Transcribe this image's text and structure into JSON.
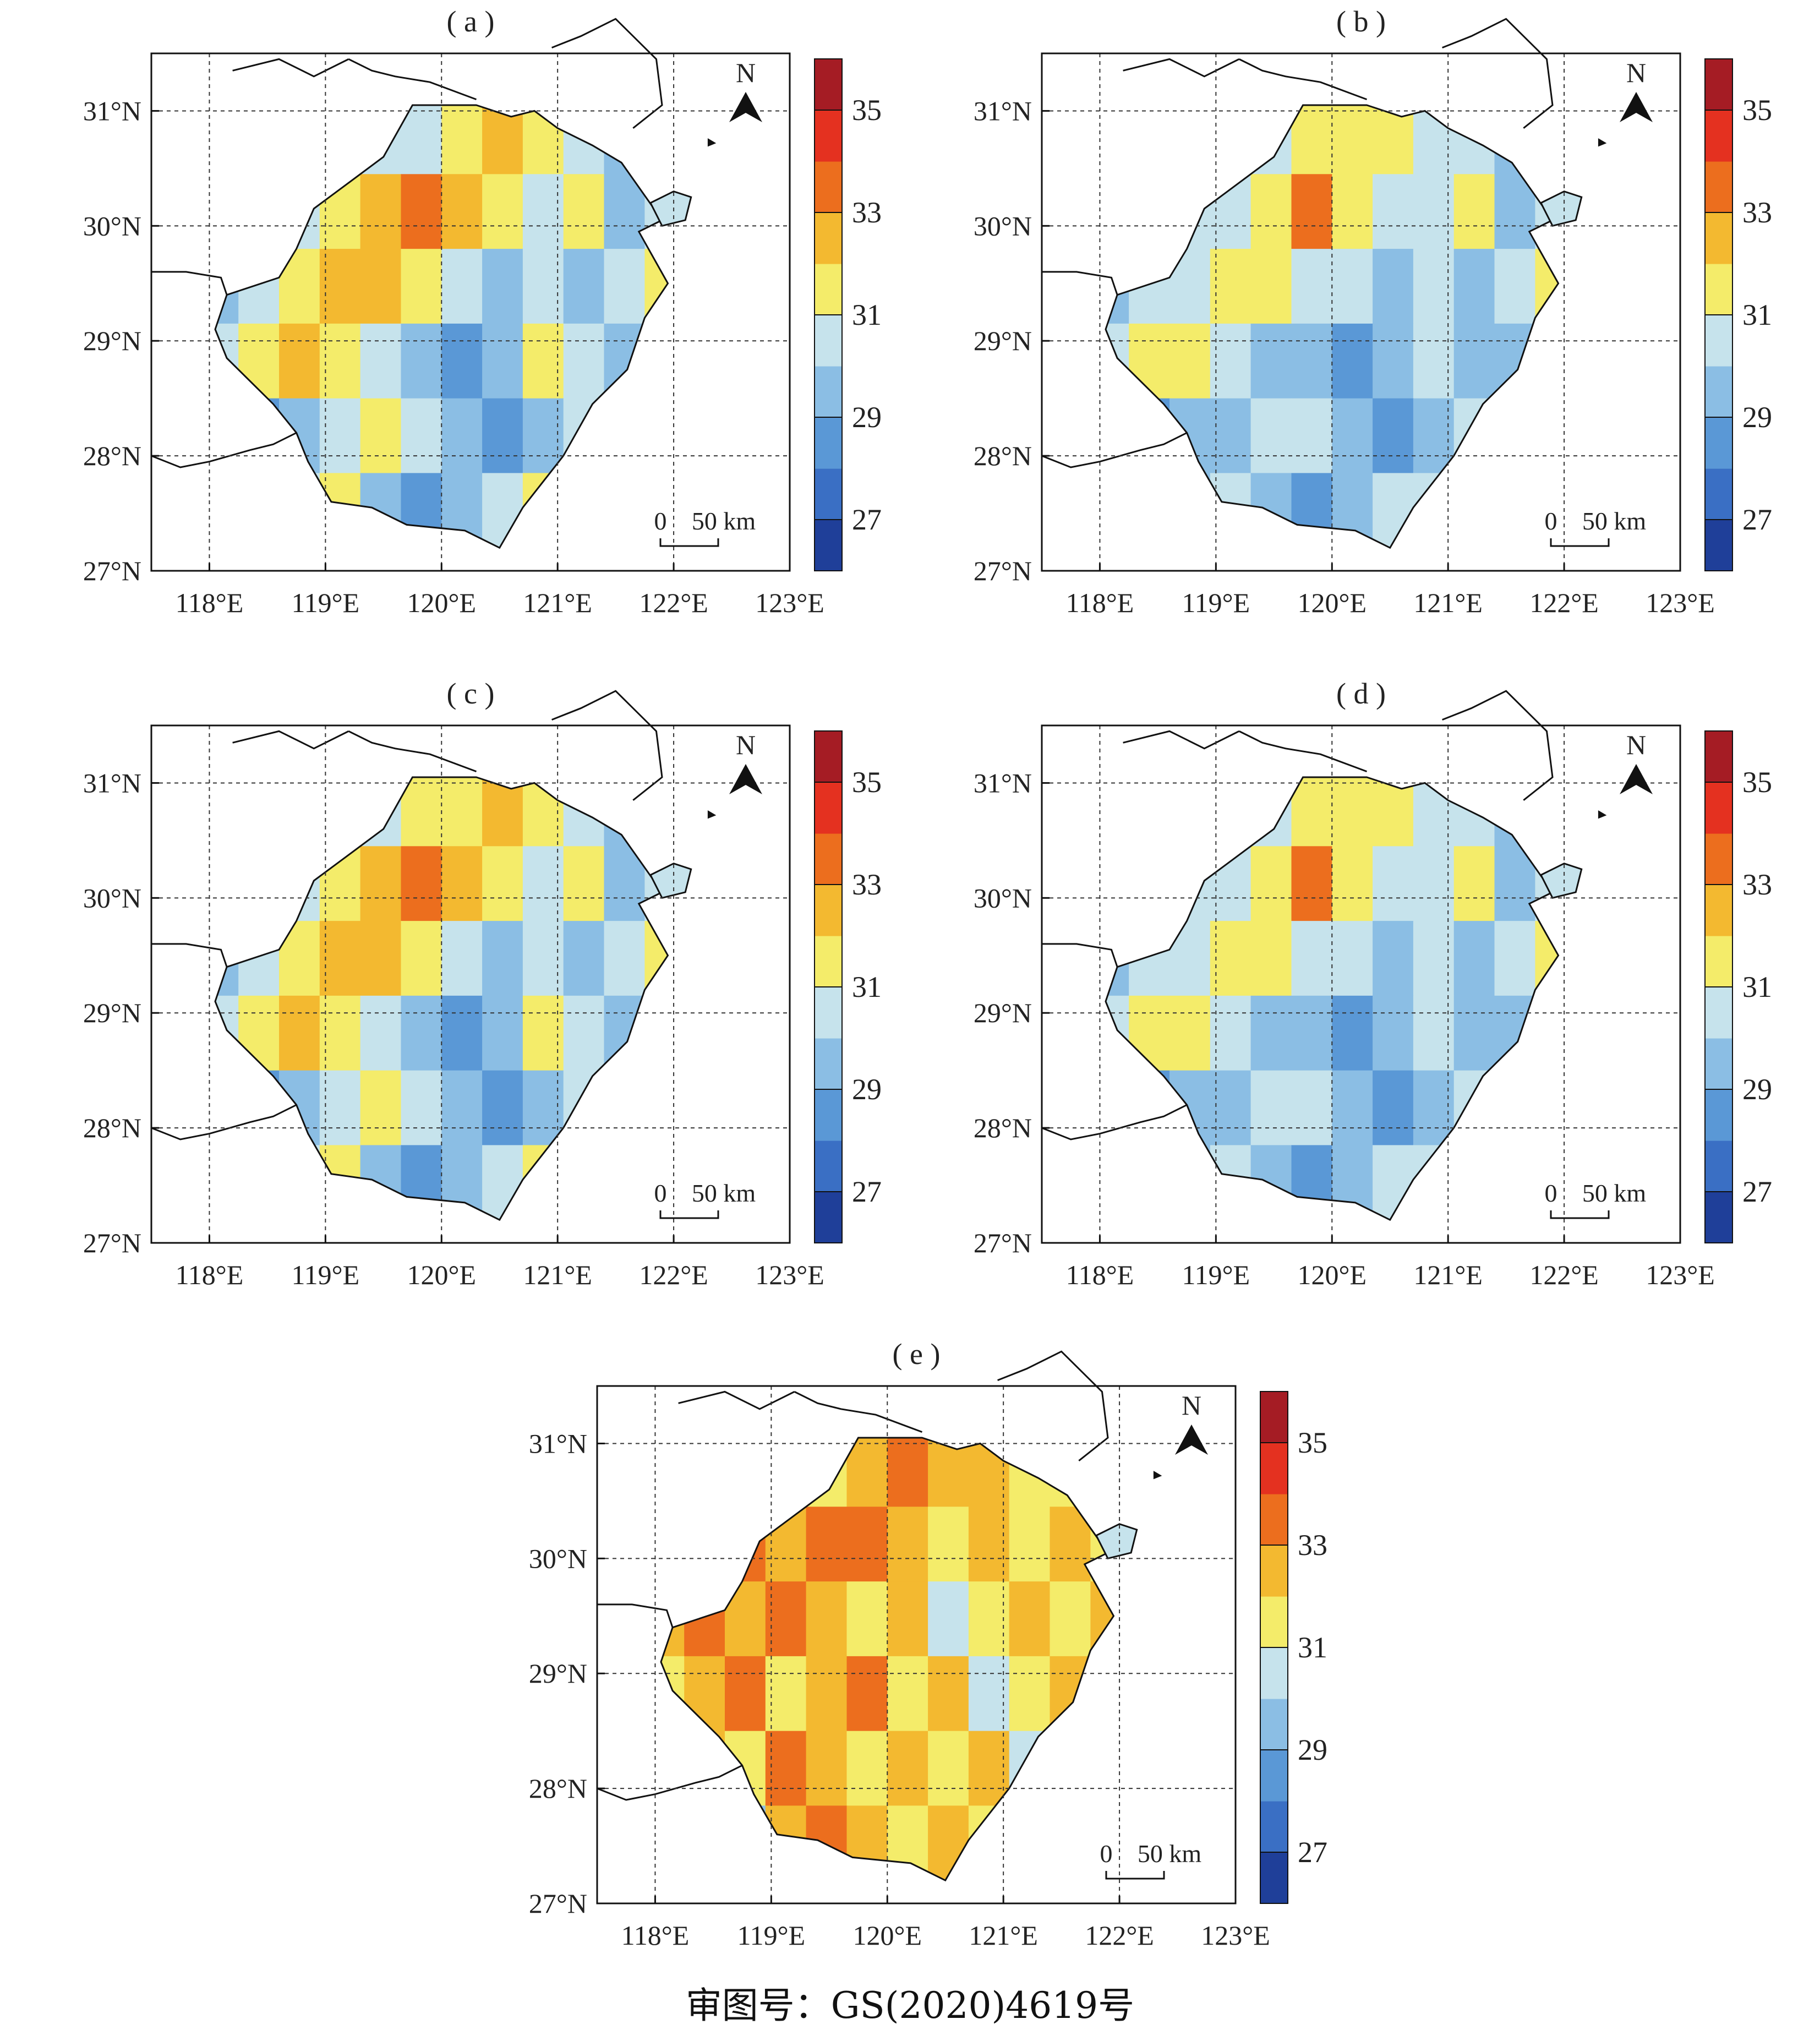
{
  "figure": {
    "panels": [
      {
        "label": "( a )",
        "pattern": [
          [
            31,
            30,
            30,
            29,
            30,
            30,
            31,
            32,
            31,
            30,
            29,
            30
          ],
          [
            30,
            29,
            30,
            31,
            32,
            33,
            32,
            31,
            30,
            31,
            29,
            30
          ],
          [
            29,
            30,
            31,
            32,
            32,
            31,
            30,
            29,
            30,
            29,
            30,
            31
          ],
          [
            30,
            31,
            32,
            31,
            30,
            29,
            28,
            29,
            31,
            30,
            29,
            30
          ],
          [
            29,
            28,
            29,
            30,
            31,
            30,
            29,
            28,
            29,
            30,
            31,
            30
          ],
          [
            28,
            29,
            30,
            31,
            29,
            28,
            29,
            30,
            31,
            29,
            30,
            29
          ]
        ]
      },
      {
        "label": "( b )",
        "pattern": [
          [
            30,
            30,
            29,
            29,
            30,
            31,
            31,
            31,
            30,
            30,
            29,
            30
          ],
          [
            29,
            29,
            30,
            30,
            31,
            33,
            31,
            30,
            30,
            31,
            29,
            30
          ],
          [
            29,
            30,
            30,
            31,
            31,
            30,
            30,
            29,
            30,
            29,
            30,
            31
          ],
          [
            30,
            31,
            31,
            30,
            29,
            29,
            28,
            29,
            30,
            29,
            29,
            30
          ],
          [
            29,
            28,
            29,
            29,
            30,
            30,
            29,
            28,
            29,
            30,
            30,
            30
          ],
          [
            28,
            28,
            29,
            30,
            29,
            28,
            29,
            30,
            30,
            29,
            30,
            29
          ]
        ]
      },
      {
        "label": "( c )",
        "pattern": [
          [
            31,
            30,
            30,
            29,
            30,
            31,
            31,
            32,
            31,
            30,
            29,
            30
          ],
          [
            30,
            29,
            30,
            31,
            32,
            33,
            32,
            31,
            30,
            31,
            29,
            30
          ],
          [
            29,
            30,
            31,
            32,
            32,
            31,
            30,
            29,
            30,
            29,
            30,
            31
          ],
          [
            30,
            31,
            32,
            31,
            30,
            29,
            28,
            29,
            31,
            30,
            29,
            30
          ],
          [
            29,
            28,
            29,
            30,
            31,
            30,
            29,
            28,
            29,
            30,
            31,
            30
          ],
          [
            28,
            29,
            30,
            31,
            29,
            28,
            29,
            30,
            31,
            29,
            30,
            29
          ]
        ]
      },
      {
        "label": "( d )",
        "pattern": [
          [
            30,
            30,
            29,
            29,
            30,
            31,
            31,
            31,
            30,
            30,
            29,
            30
          ],
          [
            29,
            29,
            30,
            30,
            31,
            33,
            31,
            30,
            30,
            31,
            29,
            30
          ],
          [
            29,
            30,
            30,
            31,
            31,
            30,
            30,
            29,
            30,
            29,
            30,
            31
          ],
          [
            30,
            31,
            31,
            30,
            29,
            29,
            28,
            29,
            30,
            29,
            29,
            30
          ],
          [
            29,
            28,
            29,
            29,
            30,
            30,
            29,
            28,
            29,
            30,
            30,
            30
          ],
          [
            28,
            28,
            29,
            30,
            29,
            28,
            29,
            30,
            30,
            29,
            30,
            29
          ]
        ]
      },
      {
        "label": "( e )",
        "pattern": [
          [
            32,
            31,
            32,
            32,
            31,
            32,
            33,
            32,
            32,
            31,
            31,
            32
          ],
          [
            31,
            32,
            33,
            32,
            33,
            33,
            32,
            31,
            32,
            31,
            32,
            31
          ],
          [
            32,
            33,
            32,
            33,
            32,
            31,
            32,
            30,
            31,
            32,
            31,
            32
          ],
          [
            31,
            32,
            33,
            31,
            32,
            33,
            31,
            32,
            30,
            31,
            32,
            31
          ],
          [
            30,
            32,
            31,
            33,
            32,
            31,
            32,
            31,
            32,
            30,
            31,
            32
          ],
          [
            31,
            30,
            29,
            32,
            33,
            32,
            31,
            32,
            31,
            32,
            31,
            30
          ]
        ]
      }
    ],
    "lon_ticks": [
      "118°E",
      "119°E",
      "120°E",
      "121°E",
      "122°E",
      "123°E"
    ],
    "lat_ticks": [
      "31°N",
      "30°N",
      "29°N",
      "28°N",
      "27°N"
    ],
    "north_label": "N",
    "scale_bar": {
      "zero": "0",
      "distance": "50 km"
    },
    "colorbar": {
      "ticks": [
        "35",
        "33",
        "31",
        "29",
        "27"
      ],
      "levels": [
        26,
        27,
        28,
        29,
        30,
        31,
        32,
        33,
        34,
        35,
        36
      ],
      "colors": [
        "#1f3f99",
        "#3a6fc4",
        "#5a98d6",
        "#8bbee4",
        "#c6e3ec",
        "#f4ec6a",
        "#f3b930",
        "#ec6e1e",
        "#e43120",
        "#a51c24"
      ]
    },
    "land_color": "#c6e3ec",
    "footer": "审图号：GS(2020)4619号"
  },
  "chart_data": {
    "type": "heatmap",
    "title": "",
    "panels": [
      "( a )",
      "( b )",
      "( c )",
      "( d )",
      "( e )"
    ],
    "x_axis": {
      "label": "",
      "range": [
        117.5,
        123
      ],
      "ticks": [
        118,
        119,
        120,
        121,
        122,
        123
      ]
    },
    "y_axis": {
      "label": "",
      "range": [
        27,
        31.5
      ],
      "ticks": [
        27,
        28,
        29,
        30,
        31
      ]
    },
    "colorbar": {
      "min": 26,
      "max": 36,
      "step": 1,
      "labeled_ticks": [
        27,
        29,
        31,
        33,
        35
      ]
    }
  }
}
